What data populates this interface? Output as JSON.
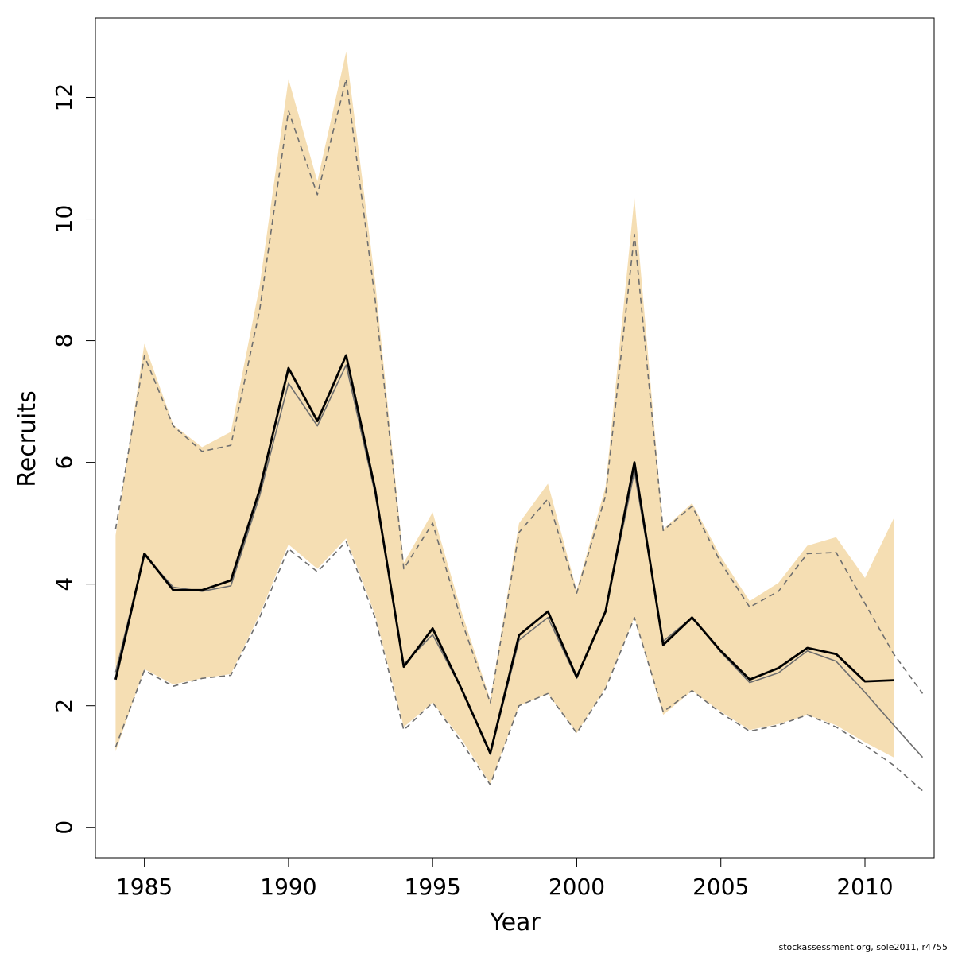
{
  "chart_data": {
    "type": "line",
    "xlabel": "Year",
    "ylabel": "Recruits",
    "xlim": [
      1983.3,
      2012.4
    ],
    "ylim": [
      -0.5,
      13.3
    ],
    "x_ticks": [
      1985,
      1990,
      1995,
      2000,
      2005,
      2010
    ],
    "y_ticks": [
      0,
      2,
      4,
      6,
      8,
      10,
      12
    ],
    "grid": false,
    "legend": "none",
    "colors": {
      "band": "#F5DEB3",
      "main": "#000000",
      "alt": "#6E6E6E",
      "ci": "#6E6E6E"
    },
    "band": {
      "x": [
        1984,
        1985,
        1986,
        1987,
        1988,
        1989,
        1990,
        1991,
        1992,
        1993,
        1994,
        1995,
        1996,
        1997,
        1998,
        1999,
        2000,
        2001,
        2002,
        2003,
        2004,
        2005,
        2006,
        2007,
        2008,
        2009,
        2010,
        2011
      ],
      "lower": [
        1.25,
        2.6,
        2.35,
        2.45,
        2.52,
        3.5,
        4.65,
        4.25,
        4.75,
        3.5,
        1.65,
        2.05,
        1.45,
        0.72,
        2.0,
        2.2,
        1.55,
        2.3,
        3.45,
        1.85,
        2.25,
        1.9,
        1.6,
        1.7,
        1.85,
        1.68,
        1.4,
        1.15
      ],
      "upper": [
        4.8,
        7.95,
        6.62,
        6.25,
        6.5,
        8.9,
        12.3,
        10.62,
        12.75,
        9.0,
        4.35,
        5.18,
        3.55,
        2.1,
        5.0,
        5.65,
        3.9,
        5.6,
        10.35,
        4.9,
        5.33,
        4.45,
        3.72,
        4.02,
        4.63,
        4.77,
        4.1,
        5.08
      ]
    },
    "series": [
      {
        "style": "solid-bold",
        "x": [
          1984,
          1985,
          1986,
          1987,
          1988,
          1989,
          1990,
          1991,
          1992,
          1993,
          1994,
          1995,
          1996,
          1997,
          1998,
          1999,
          2000,
          2001,
          2002,
          2003,
          2004,
          2005,
          2006,
          2007,
          2008,
          2009,
          2010,
          2011
        ],
        "values": [
          2.43,
          4.5,
          3.9,
          3.9,
          4.06,
          5.55,
          7.55,
          6.68,
          7.76,
          5.57,
          2.64,
          3.27,
          2.28,
          1.22,
          3.16,
          3.55,
          2.47,
          3.55,
          6.0,
          3.0,
          3.45,
          2.9,
          2.43,
          2.62,
          2.95,
          2.85,
          2.4,
          2.42
        ]
      },
      {
        "style": "solid-grey",
        "x": [
          1984,
          1985,
          1986,
          1987,
          1988,
          1989,
          1990,
          1991,
          1992,
          1993,
          1994,
          1995,
          1996,
          1997,
          1998,
          1999,
          2000,
          2001,
          2002,
          2003,
          2004,
          2005,
          2006,
          2007,
          2008,
          2009,
          2010,
          2011,
          2012
        ],
        "values": [
          2.55,
          4.48,
          3.95,
          3.88,
          3.97,
          5.45,
          7.3,
          6.6,
          7.6,
          5.5,
          2.68,
          3.17,
          2.28,
          1.2,
          3.08,
          3.45,
          2.45,
          3.55,
          5.85,
          3.06,
          3.45,
          2.88,
          2.38,
          2.54,
          2.9,
          2.73,
          2.22,
          1.68,
          1.15
        ]
      },
      {
        "style": "dashed-upper",
        "x": [
          1984,
          1985,
          1986,
          1987,
          1988,
          1989,
          1990,
          1991,
          1992,
          1993,
          1994,
          1995,
          1996,
          1997,
          1998,
          1999,
          2000,
          2001,
          2002,
          2003,
          2004,
          2005,
          2006,
          2007,
          2008,
          2009,
          2010,
          2011,
          2012
        ],
        "values": [
          4.9,
          7.75,
          6.6,
          6.18,
          6.28,
          8.5,
          11.78,
          10.4,
          12.3,
          8.7,
          4.25,
          5.0,
          3.4,
          2.05,
          4.85,
          5.4,
          3.85,
          5.45,
          9.75,
          4.88,
          5.28,
          4.35,
          3.62,
          3.88,
          4.5,
          4.52,
          3.68,
          2.85,
          2.2
        ]
      },
      {
        "style": "dashed-lower",
        "x": [
          1984,
          1985,
          1986,
          1987,
          1988,
          1989,
          1990,
          1991,
          1992,
          1993,
          1994,
          1995,
          1996,
          1997,
          1998,
          1999,
          2000,
          2001,
          2002,
          2003,
          2004,
          2005,
          2006,
          2007,
          2008,
          2009,
          2010,
          2011,
          2012
        ],
        "values": [
          1.32,
          2.58,
          2.32,
          2.45,
          2.5,
          3.45,
          4.58,
          4.2,
          4.7,
          3.45,
          1.6,
          2.05,
          1.4,
          0.7,
          2.0,
          2.2,
          1.55,
          2.28,
          3.45,
          1.9,
          2.25,
          1.88,
          1.58,
          1.68,
          1.85,
          1.65,
          1.35,
          1.02,
          0.6
        ]
      }
    ]
  },
  "credit": "stockassessment.org, sole2011, r4755"
}
